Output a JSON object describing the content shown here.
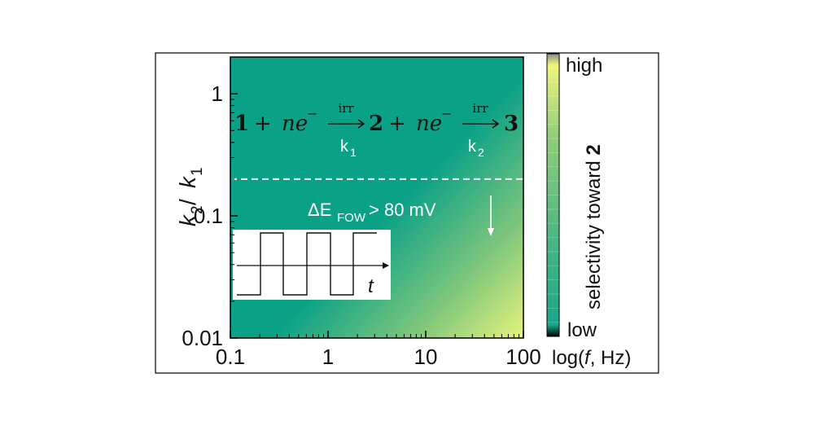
{
  "chart_data": {
    "type": "heatmap",
    "x_axis": {
      "label": "log(f, Hz)",
      "label_parts": [
        "log(",
        "f",
        ", Hz)"
      ],
      "scale": "log",
      "range": [
        0.1,
        100
      ],
      "ticks": [
        0.1,
        1,
        10,
        100
      ],
      "tick_labels": [
        "0.1",
        "1",
        "10",
        "100"
      ]
    },
    "y_axis": {
      "label": "k2 / k1",
      "label_parts": [
        "k",
        "2",
        " / ",
        "k",
        "1"
      ],
      "scale": "log",
      "range": [
        0.01,
        2
      ],
      "ticks": [
        0.01,
        0.1,
        1
      ],
      "tick_labels": [
        "0.01",
        "0.1",
        "1"
      ]
    },
    "colorbar": {
      "label": "selectivity toward 2",
      "label_parts": [
        "selectivity toward ",
        "2"
      ],
      "high_label": "high",
      "low_label": "low",
      "colors": [
        "#000000",
        "#1aa68a",
        "#4cb783",
        "#8fcd7a",
        "#f0f57c",
        "#8c8c8c"
      ]
    },
    "colors": {
      "low": "#0ba187",
      "mid": "#7fc77c",
      "high": "#e6f37c"
    },
    "annotations": {
      "reaction": {
        "parts": [
          "1",
          " + ",
          "ne",
          "−",
          "2",
          " + ",
          "ne",
          "−",
          "3"
        ],
        "arrow_label": "irr",
        "k1_parts": [
          "k",
          "1"
        ],
        "k2_parts": [
          "k",
          "2"
        ]
      },
      "threshold_y": 0.2,
      "threshold_label_parts": [
        "ΔE",
        "FOW",
        " > 80 mV"
      ],
      "inset_axis_label": "t"
    }
  }
}
